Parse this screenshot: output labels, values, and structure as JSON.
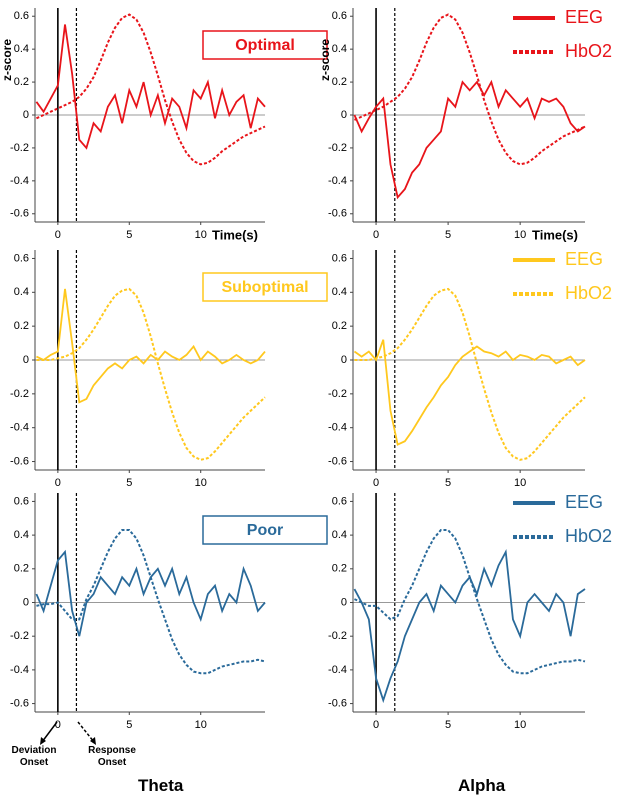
{
  "figure": {
    "columns": [
      "Theta",
      "Alpha"
    ],
    "annotations": [
      "Deviation Onset",
      "Response Onset"
    ]
  },
  "chart_data": [
    {
      "type": "line",
      "title": "Optimal",
      "ylabel": "z-score",
      "xlabel": "Time(s)",
      "x": [
        -1.5,
        -1,
        -0.5,
        0,
        0.5,
        1,
        1.5,
        2,
        2.5,
        3,
        3.5,
        4,
        4.5,
        5,
        5.5,
        6,
        6.5,
        7,
        7.5,
        8,
        8.5,
        9,
        9.5,
        10,
        10.5,
        11,
        11.5,
        12,
        12.5,
        13,
        13.5,
        14,
        14.5
      ],
      "xlim": [
        -1.6,
        14.5
      ],
      "ylim": [
        -0.65,
        0.65
      ],
      "xticks": [
        0,
        5,
        10
      ],
      "yticks": [
        -0.6,
        -0.4,
        -0.2,
        0,
        0.2,
        0.4,
        0.6
      ],
      "vlines": [
        {
          "x": 0,
          "dash": false
        },
        {
          "x": 1.3,
          "dash": true
        }
      ],
      "color": "#e8141a",
      "series": [
        {
          "dash": false,
          "values": [
            0.08,
            0.02,
            0.1,
            0.18,
            0.55,
            0.25,
            -0.15,
            -0.2,
            -0.05,
            -0.1,
            0.05,
            0.12,
            -0.05,
            0.15,
            0.05,
            0.2,
            0.0,
            0.12,
            -0.05,
            0.1,
            0.05,
            -0.08,
            0.15,
            0.1,
            0.2,
            -0.02,
            0.15,
            0.0,
            0.08,
            0.12,
            -0.08,
            0.1,
            0.05
          ]
        },
        {
          "dash": true,
          "values": [
            -0.02,
            0,
            0.02,
            0.04,
            0.06,
            0.08,
            0.11,
            0.16,
            0.23,
            0.33,
            0.44,
            0.53,
            0.59,
            0.61,
            0.58,
            0.5,
            0.38,
            0.24,
            0.09,
            -0.04,
            -0.15,
            -0.23,
            -0.28,
            -0.3,
            -0.29,
            -0.26,
            -0.22,
            -0.19,
            -0.16,
            -0.13,
            -0.11,
            -0.09,
            -0.07
          ]
        }
      ]
    },
    {
      "type": "line",
      "ylabel": "z-score",
      "xlabel": "Time(s)",
      "legend": "upper right",
      "x": [
        -1.5,
        -1,
        -0.5,
        0,
        0.5,
        1,
        1.5,
        2,
        2.5,
        3,
        3.5,
        4,
        4.5,
        5,
        5.5,
        6,
        6.5,
        7,
        7.5,
        8,
        8.5,
        9,
        9.5,
        10,
        10.5,
        11,
        11.5,
        12,
        12.5,
        13,
        13.5,
        14,
        14.5
      ],
      "xlim": [
        -1.6,
        14.5
      ],
      "ylim": [
        -0.65,
        0.65
      ],
      "xticks": [
        0,
        5,
        10
      ],
      "yticks": [
        -0.6,
        -0.4,
        -0.2,
        0,
        0.2,
        0.4,
        0.6
      ],
      "vlines": [
        {
          "x": 0,
          "dash": false
        },
        {
          "x": 1.3,
          "dash": true
        }
      ],
      "color": "#e8141a",
      "series": [
        {
          "name": "EEG",
          "dash": false,
          "values": [
            0,
            -0.1,
            -0.02,
            0.05,
            0.1,
            -0.3,
            -0.5,
            -0.45,
            -0.35,
            -0.3,
            -0.2,
            -0.15,
            -0.1,
            0.1,
            0.05,
            0.2,
            0.15,
            0.2,
            0.12,
            0.2,
            0.05,
            0.15,
            0.1,
            0.05,
            0.1,
            -0.02,
            0.1,
            0.08,
            0.1,
            0.05,
            -0.05,
            -0.1,
            -0.07
          ]
        },
        {
          "name": "HbO2",
          "dash": true,
          "values": [
            -0.03,
            -0.01,
            0.01,
            0.03,
            0.05,
            0.08,
            0.11,
            0.16,
            0.23,
            0.33,
            0.44,
            0.53,
            0.59,
            0.61,
            0.58,
            0.5,
            0.38,
            0.24,
            0.09,
            -0.04,
            -0.15,
            -0.23,
            -0.28,
            -0.3,
            -0.29,
            -0.26,
            -0.22,
            -0.19,
            -0.16,
            -0.13,
            -0.11,
            -0.09,
            -0.07
          ]
        }
      ]
    },
    {
      "type": "line",
      "title": "Suboptimal",
      "x": [
        -1.5,
        -1,
        -0.5,
        0,
        0.5,
        1,
        1.5,
        2,
        2.5,
        3,
        3.5,
        4,
        4.5,
        5,
        5.5,
        6,
        6.5,
        7,
        7.5,
        8,
        8.5,
        9,
        9.5,
        10,
        10.5,
        11,
        11.5,
        12,
        12.5,
        13,
        13.5,
        14,
        14.5
      ],
      "xlim": [
        -1.6,
        14.5
      ],
      "ylim": [
        -0.65,
        0.65
      ],
      "xticks": [
        0,
        5,
        10
      ],
      "yticks": [
        -0.6,
        -0.4,
        -0.2,
        0,
        0.2,
        0.4,
        0.6
      ],
      "vlines": [
        {
          "x": 0,
          "dash": false
        },
        {
          "x": 1.3,
          "dash": true
        }
      ],
      "color": "#ffc81e",
      "series": [
        {
          "dash": false,
          "values": [
            0.02,
            0.0,
            0.03,
            0.05,
            0.42,
            0.1,
            -0.25,
            -0.23,
            -0.15,
            -0.1,
            -0.05,
            -0.02,
            -0.05,
            0.0,
            0.02,
            -0.02,
            0.03,
            0.0,
            0.05,
            0.02,
            0.0,
            0.03,
            0.08,
            0.0,
            0.05,
            0.02,
            -0.02,
            0.0,
            0.03,
            0.0,
            -0.02,
            0.0,
            0.05
          ]
        },
        {
          "dash": true,
          "values": [
            0,
            0,
            0,
            0.01,
            0.02,
            0.04,
            0.07,
            0.12,
            0.18,
            0.25,
            0.32,
            0.38,
            0.41,
            0.42,
            0.38,
            0.28,
            0.14,
            -0.02,
            -0.17,
            -0.31,
            -0.43,
            -0.52,
            -0.57,
            -0.59,
            -0.58,
            -0.54,
            -0.49,
            -0.44,
            -0.39,
            -0.34,
            -0.3,
            -0.26,
            -0.22
          ]
        }
      ]
    },
    {
      "type": "line",
      "legend": "upper right",
      "x": [
        -1.5,
        -1,
        -0.5,
        0,
        0.5,
        1,
        1.5,
        2,
        2.5,
        3,
        3.5,
        4,
        4.5,
        5,
        5.5,
        6,
        6.5,
        7,
        7.5,
        8,
        8.5,
        9,
        9.5,
        10,
        10.5,
        11,
        11.5,
        12,
        12.5,
        13,
        13.5,
        14,
        14.5
      ],
      "xlim": [
        -1.6,
        14.5
      ],
      "ylim": [
        -0.65,
        0.65
      ],
      "xticks": [
        0,
        5,
        10
      ],
      "yticks": [
        -0.6,
        -0.4,
        -0.2,
        0,
        0.2,
        0.4,
        0.6
      ],
      "vlines": [
        {
          "x": 0,
          "dash": false
        },
        {
          "x": 1.3,
          "dash": true
        }
      ],
      "color": "#ffc81e",
      "series": [
        {
          "name": "EEG",
          "dash": false,
          "values": [
            0.05,
            0.02,
            0.05,
            0.0,
            0.12,
            -0.3,
            -0.5,
            -0.48,
            -0.42,
            -0.35,
            -0.28,
            -0.22,
            -0.15,
            -0.1,
            -0.03,
            0.02,
            0.05,
            0.08,
            0.05,
            0.04,
            0.02,
            0.05,
            0.0,
            0.03,
            0.02,
            0.0,
            0.03,
            0.02,
            -0.02,
            0.0,
            0.02,
            -0.03,
            0.0
          ]
        },
        {
          "name": "HbO2",
          "dash": true,
          "values": [
            0,
            0,
            0,
            0.01,
            0.02,
            0.04,
            0.07,
            0.12,
            0.18,
            0.25,
            0.32,
            0.38,
            0.41,
            0.42,
            0.38,
            0.28,
            0.14,
            -0.02,
            -0.17,
            -0.31,
            -0.43,
            -0.52,
            -0.57,
            -0.59,
            -0.58,
            -0.54,
            -0.49,
            -0.44,
            -0.39,
            -0.34,
            -0.3,
            -0.26,
            -0.22
          ]
        }
      ]
    },
    {
      "type": "line",
      "title": "Poor",
      "x": [
        -1.5,
        -1,
        -0.5,
        0,
        0.5,
        1,
        1.5,
        2,
        2.5,
        3,
        3.5,
        4,
        4.5,
        5,
        5.5,
        6,
        6.5,
        7,
        7.5,
        8,
        8.5,
        9,
        9.5,
        10,
        10.5,
        11,
        11.5,
        12,
        12.5,
        13,
        13.5,
        14,
        14.5
      ],
      "xlim": [
        -1.6,
        14.5
      ],
      "ylim": [
        -0.65,
        0.65
      ],
      "xticks": [
        0,
        5,
        10
      ],
      "yticks": [
        -0.6,
        -0.4,
        -0.2,
        0,
        0.2,
        0.4,
        0.6
      ],
      "vlines": [
        {
          "x": 0,
          "dash": false
        },
        {
          "x": 1.3,
          "dash": true
        }
      ],
      "color": "#2a6a9a",
      "series": [
        {
          "dash": false,
          "values": [
            0.05,
            -0.05,
            0.1,
            0.25,
            0.3,
            -0.05,
            -0.2,
            0.0,
            0.05,
            0.15,
            0.1,
            0.05,
            0.15,
            0.1,
            0.2,
            0.05,
            0.15,
            0.2,
            0.1,
            0.2,
            0.05,
            0.15,
            0.0,
            -0.1,
            0.05,
            0.1,
            -0.05,
            0.05,
            0.0,
            0.2,
            0.1,
            -0.05,
            0.0
          ]
        },
        {
          "dash": true,
          "values": [
            -0.02,
            -0.01,
            -0.01,
            0,
            -0.05,
            -0.1,
            -0.1,
            0.02,
            0.1,
            0.2,
            0.3,
            0.38,
            0.43,
            0.43,
            0.38,
            0.28,
            0.15,
            0.02,
            -0.1,
            -0.22,
            -0.31,
            -0.37,
            -0.41,
            -0.42,
            -0.42,
            -0.4,
            -0.38,
            -0.37,
            -0.36,
            -0.35,
            -0.35,
            -0.34,
            -0.35
          ]
        }
      ]
    },
    {
      "type": "line",
      "legend": "upper right",
      "x": [
        -1.5,
        -1,
        -0.5,
        0,
        0.5,
        1,
        1.5,
        2,
        2.5,
        3,
        3.5,
        4,
        4.5,
        5,
        5.5,
        6,
        6.5,
        7,
        7.5,
        8,
        8.5,
        9,
        9.5,
        10,
        10.5,
        11,
        11.5,
        12,
        12.5,
        13,
        13.5,
        14,
        14.5
      ],
      "xlim": [
        -1.6,
        14.5
      ],
      "ylim": [
        -0.65,
        0.65
      ],
      "xticks": [
        0,
        5,
        10
      ],
      "yticks": [
        -0.6,
        -0.4,
        -0.2,
        0,
        0.2,
        0.4,
        0.6
      ],
      "vlines": [
        {
          "x": 0,
          "dash": false
        },
        {
          "x": 1.3,
          "dash": true
        }
      ],
      "color": "#2a6a9a",
      "series": [
        {
          "name": "EEG",
          "dash": false,
          "values": [
            0.08,
            0.0,
            -0.1,
            -0.45,
            -0.58,
            -0.45,
            -0.35,
            -0.2,
            -0.1,
            0.0,
            0.05,
            -0.05,
            0.1,
            0.05,
            0.0,
            0.1,
            0.15,
            0.05,
            0.2,
            0.1,
            0.22,
            0.3,
            -0.1,
            -0.2,
            0.0,
            0.05,
            0.0,
            -0.05,
            0.05,
            0.0,
            -0.2,
            0.05,
            0.08
          ]
        },
        {
          "name": "HbO2",
          "dash": true,
          "values": [
            0.02,
            0.0,
            -0.02,
            -0.02,
            -0.06,
            -0.1,
            -0.08,
            0.02,
            0.1,
            0.2,
            0.3,
            0.38,
            0.43,
            0.43,
            0.38,
            0.28,
            0.15,
            0.02,
            -0.1,
            -0.22,
            -0.31,
            -0.37,
            -0.41,
            -0.42,
            -0.42,
            -0.4,
            -0.38,
            -0.37,
            -0.36,
            -0.35,
            -0.35,
            -0.34,
            -0.35
          ]
        }
      ]
    }
  ]
}
